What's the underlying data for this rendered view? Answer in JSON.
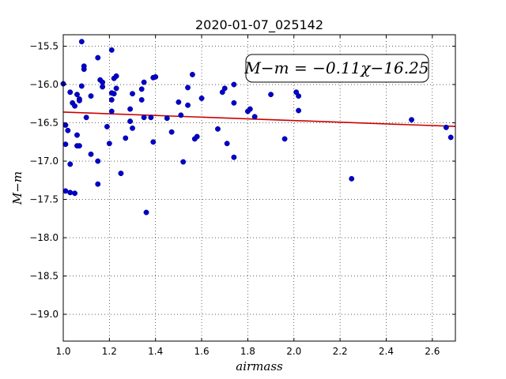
{
  "chart_data": {
    "type": "scatter",
    "title": "2020-01-07_025142",
    "xlabel": "airmass",
    "ylabel": "M−m",
    "xlim": [
      1.0,
      2.7
    ],
    "ylim": [
      -19.35,
      -15.35
    ],
    "y_inverted": true,
    "grid": true,
    "x_ticks": [
      1.0,
      1.2,
      1.4,
      1.6,
      1.8,
      2.0,
      2.2,
      2.4,
      2.6
    ],
    "x_tick_labels": [
      "1.0",
      "1.2",
      "1.4",
      "1.6",
      "1.8",
      "2.0",
      "2.2",
      "2.4",
      "2.6"
    ],
    "y_ticks": [
      -15.5,
      -16.0,
      -16.5,
      -17.0,
      -17.5,
      -18.0,
      -18.5,
      -19.0
    ],
    "y_tick_labels": [
      "−15.5",
      "−16.0",
      "−16.5",
      "−17.0",
      "−17.5",
      "−18.0",
      "−18.5",
      "−19.0"
    ],
    "annotation": "M−m = −0.11χ−16.25",
    "fit_line": {
      "slope": -0.11,
      "intercept": -16.25,
      "color": "#cc0000"
    },
    "point_color": "#0000cc",
    "points": [
      [
        1.0,
        -15.99
      ],
      [
        1.01,
        -16.53
      ],
      [
        1.01,
        -16.78
      ],
      [
        1.01,
        -17.39
      ],
      [
        1.02,
        -16.6
      ],
      [
        1.03,
        -16.1
      ],
      [
        1.03,
        -17.04
      ],
      [
        1.03,
        -17.41
      ],
      [
        1.04,
        -16.24
      ],
      [
        1.05,
        -16.28
      ],
      [
        1.05,
        -17.42
      ],
      [
        1.06,
        -16.13
      ],
      [
        1.06,
        -16.66
      ],
      [
        1.06,
        -16.8
      ],
      [
        1.07,
        -16.19
      ],
      [
        1.07,
        -16.21
      ],
      [
        1.07,
        -16.8
      ],
      [
        1.08,
        -15.44
      ],
      [
        1.08,
        -16.02
      ],
      [
        1.09,
        -15.8
      ],
      [
        1.09,
        -15.76
      ],
      [
        1.1,
        -16.43
      ],
      [
        1.12,
        -16.15
      ],
      [
        1.12,
        -16.91
      ],
      [
        1.15,
        -15.65
      ],
      [
        1.15,
        -17.0
      ],
      [
        1.15,
        -17.3
      ],
      [
        1.16,
        -15.94
      ],
      [
        1.17,
        -15.97
      ],
      [
        1.17,
        -16.03
      ],
      [
        1.19,
        -16.55
      ],
      [
        1.2,
        -16.77
      ],
      [
        1.21,
        -15.55
      ],
      [
        1.21,
        -16.11
      ],
      [
        1.21,
        -16.2
      ],
      [
        1.21,
        -16.35
      ],
      [
        1.22,
        -15.92
      ],
      [
        1.22,
        -16.12
      ],
      [
        1.23,
        -15.89
      ],
      [
        1.23,
        -16.05
      ],
      [
        1.25,
        -17.16
      ],
      [
        1.27,
        -16.7
      ],
      [
        1.29,
        -16.32
      ],
      [
        1.29,
        -16.48
      ],
      [
        1.3,
        -16.12
      ],
      [
        1.3,
        -16.57
      ],
      [
        1.34,
        -16.06
      ],
      [
        1.34,
        -16.2
      ],
      [
        1.35,
        -15.97
      ],
      [
        1.35,
        -16.43
      ],
      [
        1.36,
        -17.67
      ],
      [
        1.38,
        -16.43
      ],
      [
        1.39,
        -16.75
      ],
      [
        1.39,
        -15.91
      ],
      [
        1.4,
        -15.9
      ],
      [
        1.45,
        -16.44
      ],
      [
        1.47,
        -16.62
      ],
      [
        1.5,
        -16.23
      ],
      [
        1.51,
        -16.4
      ],
      [
        1.52,
        -17.01
      ],
      [
        1.54,
        -16.04
      ],
      [
        1.54,
        -16.27
      ],
      [
        1.56,
        -15.87
      ],
      [
        1.57,
        -16.71
      ],
      [
        1.58,
        -16.68
      ],
      [
        1.6,
        -16.18
      ],
      [
        1.67,
        -16.58
      ],
      [
        1.69,
        -16.1
      ],
      [
        1.7,
        -16.05
      ],
      [
        1.71,
        -16.77
      ],
      [
        1.74,
        -16.0
      ],
      [
        1.74,
        -16.24
      ],
      [
        1.74,
        -16.95
      ],
      [
        1.8,
        -16.35
      ],
      [
        1.81,
        -16.32
      ],
      [
        1.83,
        -16.42
      ],
      [
        1.9,
        -16.13
      ],
      [
        1.96,
        -16.71
      ],
      [
        2.01,
        -16.1
      ],
      [
        2.02,
        -16.15
      ],
      [
        2.02,
        -16.34
      ],
      [
        2.25,
        -17.23
      ],
      [
        2.51,
        -16.46
      ],
      [
        2.66,
        -16.56
      ],
      [
        2.68,
        -16.69
      ]
    ]
  }
}
